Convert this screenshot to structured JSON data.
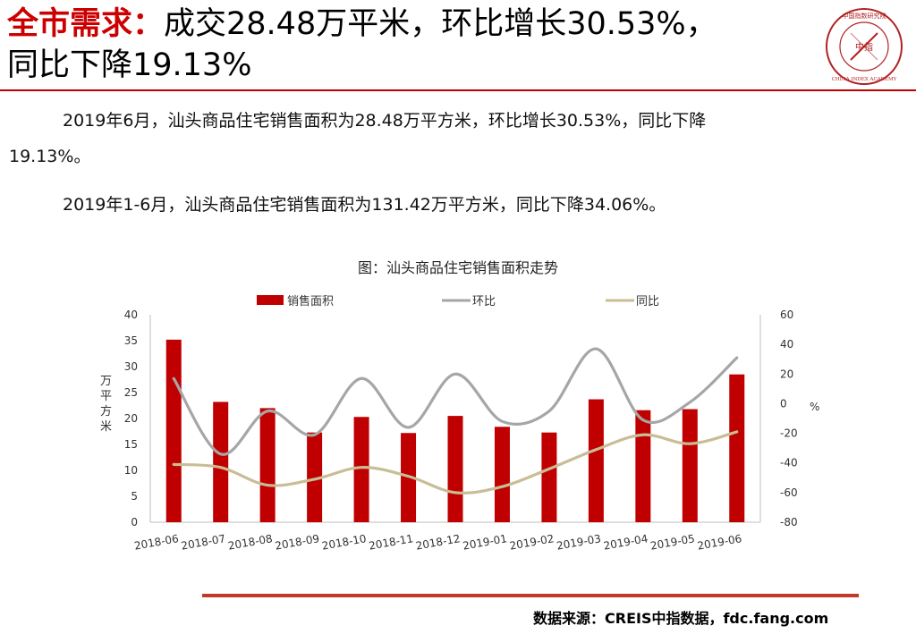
{
  "header": {
    "title_highlight": "全市需求：",
    "title_rest": "成交28.48万平米，环比增长30.53%，",
    "title_line2": "同比下降19.13%"
  },
  "logo": {
    "top_text": "中国指数研究院",
    "center_text": "中指",
    "bottom_text": "CHINA INDEX ACADEMY"
  },
  "body": {
    "para1": "2019年6月，汕头商品住宅销售面积为28.48万平方米，环比增长30.53%，同比下降",
    "para1_cont": "19.13%。",
    "para2": "2019年1-6月，汕头商品住宅销售面积为131.42万平方米，同比下降34.06%。"
  },
  "chart_data": {
    "type": "bar",
    "title": "图：汕头商品住宅销售面积走势",
    "categories": [
      "2018-06",
      "2018-07",
      "2018-08",
      "2018-09",
      "2018-10",
      "2018-11",
      "2018-12",
      "2019-01",
      "2019-02",
      "2019-03",
      "2019-04",
      "2019-05",
      "2019-06"
    ],
    "series": [
      {
        "name": "销售面积",
        "type": "bar",
        "axis": "left",
        "color": "#c00000",
        "values": [
          35.2,
          23.2,
          22.0,
          17.3,
          20.3,
          17.2,
          20.5,
          18.4,
          17.3,
          23.7,
          21.6,
          21.8,
          28.5
        ]
      },
      {
        "name": "环比",
        "type": "line",
        "axis": "right",
        "color": "#a6a6a6",
        "values": [
          17,
          -34,
          -5,
          -21,
          17,
          -16,
          20,
          -12,
          -5,
          37,
          -11,
          1,
          31
        ]
      },
      {
        "name": "同比",
        "type": "line",
        "axis": "right",
        "color": "#c8bd95",
        "values": [
          -41,
          -43,
          -55,
          -51,
          -43,
          -49,
          -60,
          -56,
          -44,
          -31,
          -21,
          -27,
          -19
        ]
      }
    ],
    "ylabel": "万平方米",
    "ylim": [
      0,
      40
    ],
    "yticks": [
      0,
      5,
      10,
      15,
      20,
      25,
      30,
      35,
      40
    ],
    "y2label": "%",
    "y2lim": [
      -80,
      60
    ],
    "y2ticks": [
      -80,
      -60,
      -40,
      -20,
      0,
      20,
      40,
      60
    ],
    "legend": "top"
  },
  "footer": {
    "source": "数据来源：CREIS中指数据，fdc.fang.com"
  }
}
